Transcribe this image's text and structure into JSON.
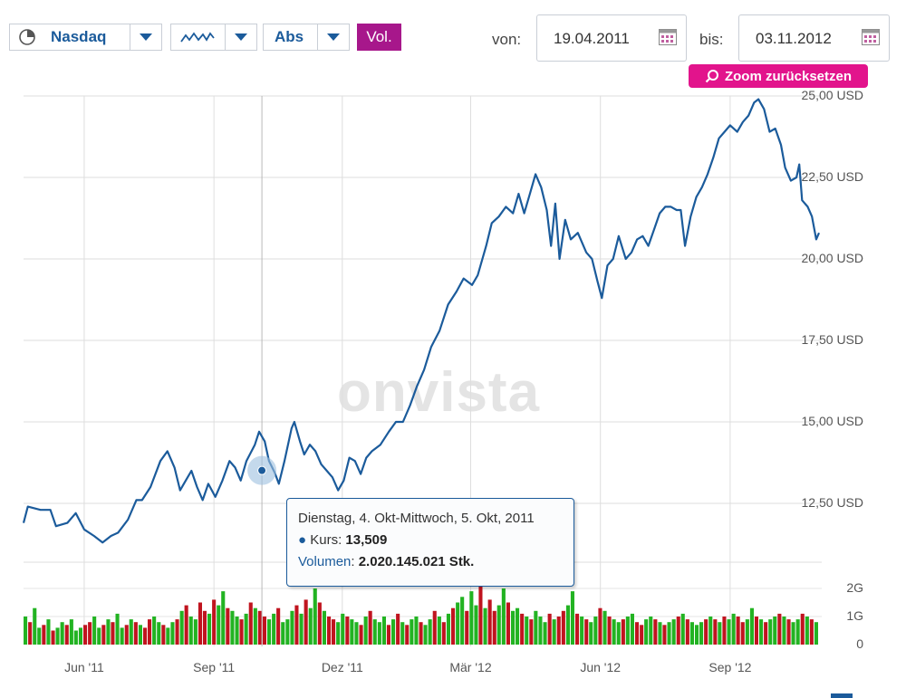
{
  "toolbar": {
    "exchange": "Nasdaq",
    "mode": "Abs",
    "vol_label": "Vol.",
    "from_label": "von:",
    "from_date": "19.04.2011",
    "to_label": "bis:",
    "to_date": "03.11.2012",
    "zoom_reset": "Zoom zurücksetzen"
  },
  "watermark": "onvista",
  "tooltip": {
    "date": "Dienstag, 4. Okt-Mittwoch, 5. Okt, 2011",
    "kurs_label": "Kurs",
    "kurs_value": "13,509",
    "volume_label": "Volumen",
    "volume_value": "2.020.145.021 Stk."
  },
  "colors": {
    "line": "#1b5b9b",
    "volume_up": "#22b322",
    "volume_down": "#c0141f",
    "accent": "#a7178b",
    "zoom": "#e2148c"
  },
  "chart_data": {
    "type": "line",
    "title": "",
    "x_range": [
      "2011-04-19",
      "2012-11-03"
    ],
    "y_range": [
      11,
      25
    ],
    "ylim_shown": [
      12.5,
      25
    ],
    "y_ticks": [
      "25,00 USD",
      "22,50 USD",
      "20,00 USD",
      "17,50 USD",
      "15,00 USD",
      "12,50 USD"
    ],
    "y_tick_values": [
      25,
      22.5,
      20,
      17.5,
      15,
      12.5
    ],
    "x_ticks": [
      "Jun '11",
      "Sep '11",
      "Dez '11",
      "Mär '12",
      "Jun '12",
      "Sep '12"
    ],
    "x_tick_dates": [
      "2011-06-01",
      "2011-09-01",
      "2011-12-01",
      "2012-03-01",
      "2012-06-01",
      "2012-09-01"
    ],
    "series": [
      {
        "points": [
          [
            "2011-04-19",
            11.9
          ],
          [
            "2011-04-22",
            12.4
          ],
          [
            "2011-05-01",
            12.3
          ],
          [
            "2011-05-08",
            12.3
          ],
          [
            "2011-05-12",
            11.8
          ],
          [
            "2011-05-20",
            11.9
          ],
          [
            "2011-05-26",
            12.2
          ],
          [
            "2011-06-01",
            11.7
          ],
          [
            "2011-06-08",
            11.5
          ],
          [
            "2011-06-14",
            11.3
          ],
          [
            "2011-06-20",
            11.5
          ],
          [
            "2011-06-25",
            11.6
          ],
          [
            "2011-07-02",
            12.0
          ],
          [
            "2011-07-08",
            12.6
          ],
          [
            "2011-07-12",
            12.6
          ],
          [
            "2011-07-18",
            13.0
          ],
          [
            "2011-07-25",
            13.8
          ],
          [
            "2011-07-30",
            14.1
          ],
          [
            "2011-08-04",
            13.6
          ],
          [
            "2011-08-08",
            12.9
          ],
          [
            "2011-08-12",
            13.2
          ],
          [
            "2011-08-16",
            13.5
          ],
          [
            "2011-08-20",
            13.0
          ],
          [
            "2011-08-24",
            12.6
          ],
          [
            "2011-08-28",
            13.1
          ],
          [
            "2011-09-02",
            12.7
          ],
          [
            "2011-09-07",
            13.2
          ],
          [
            "2011-09-12",
            13.8
          ],
          [
            "2011-09-16",
            13.6
          ],
          [
            "2011-09-20",
            13.2
          ],
          [
            "2011-09-24",
            13.8
          ],
          [
            "2011-09-30",
            14.3
          ],
          [
            "2011-10-03",
            14.7
          ],
          [
            "2011-10-07",
            14.4
          ],
          [
            "2011-10-10",
            13.8
          ],
          [
            "2011-10-14",
            13.45
          ],
          [
            "2011-10-17",
            13.1
          ],
          [
            "2011-10-21",
            13.8
          ],
          [
            "2011-10-26",
            14.8
          ],
          [
            "2011-10-28",
            15.0
          ],
          [
            "2011-11-01",
            14.4
          ],
          [
            "2011-11-04",
            14.0
          ],
          [
            "2011-11-08",
            14.3
          ],
          [
            "2011-11-12",
            14.1
          ],
          [
            "2011-11-16",
            13.7
          ],
          [
            "2011-11-20",
            13.5
          ],
          [
            "2011-11-24",
            13.3
          ],
          [
            "2011-11-28",
            12.9
          ],
          [
            "2011-12-02",
            13.2
          ],
          [
            "2011-12-06",
            13.9
          ],
          [
            "2011-12-10",
            13.8
          ],
          [
            "2011-12-14",
            13.4
          ],
          [
            "2011-12-18",
            13.9
          ],
          [
            "2011-12-22",
            14.1
          ],
          [
            "2011-12-28",
            14.3
          ],
          [
            "2012-01-03",
            14.7
          ],
          [
            "2012-01-08",
            15.0
          ],
          [
            "2012-01-13",
            15.0
          ],
          [
            "2012-01-18",
            15.5
          ],
          [
            "2012-01-23",
            16.1
          ],
          [
            "2012-01-28",
            16.6
          ],
          [
            "2012-02-02",
            17.3
          ],
          [
            "2012-02-08",
            17.8
          ],
          [
            "2012-02-14",
            18.6
          ],
          [
            "2012-02-20",
            19.0
          ],
          [
            "2012-02-25",
            19.4
          ],
          [
            "2012-03-02",
            19.2
          ],
          [
            "2012-03-06",
            19.5
          ],
          [
            "2012-03-12",
            20.4
          ],
          [
            "2012-03-16",
            21.1
          ],
          [
            "2012-03-21",
            21.3
          ],
          [
            "2012-03-26",
            21.6
          ],
          [
            "2012-03-31",
            21.4
          ],
          [
            "2012-04-04",
            22.0
          ],
          [
            "2012-04-08",
            21.4
          ],
          [
            "2012-04-12",
            22.0
          ],
          [
            "2012-04-16",
            22.6
          ],
          [
            "2012-04-20",
            22.2
          ],
          [
            "2012-04-24",
            21.5
          ],
          [
            "2012-04-27",
            20.4
          ],
          [
            "2012-04-30",
            21.7
          ],
          [
            "2012-05-03",
            20.0
          ],
          [
            "2012-05-07",
            21.2
          ],
          [
            "2012-05-11",
            20.6
          ],
          [
            "2012-05-16",
            20.8
          ],
          [
            "2012-05-22",
            20.2
          ],
          [
            "2012-05-26",
            20.0
          ],
          [
            "2012-05-30",
            19.3
          ],
          [
            "2012-06-02",
            18.8
          ],
          [
            "2012-06-06",
            19.8
          ],
          [
            "2012-06-10",
            20.0
          ],
          [
            "2012-06-14",
            20.7
          ],
          [
            "2012-06-19",
            20.0
          ],
          [
            "2012-06-23",
            20.2
          ],
          [
            "2012-06-27",
            20.6
          ],
          [
            "2012-07-01",
            20.7
          ],
          [
            "2012-07-05",
            20.4
          ],
          [
            "2012-07-09",
            20.9
          ],
          [
            "2012-07-13",
            21.4
          ],
          [
            "2012-07-17",
            21.6
          ],
          [
            "2012-07-21",
            21.6
          ],
          [
            "2012-07-25",
            21.5
          ],
          [
            "2012-07-28",
            21.5
          ],
          [
            "2012-07-31",
            20.4
          ],
          [
            "2012-08-04",
            21.3
          ],
          [
            "2012-08-08",
            21.9
          ],
          [
            "2012-08-12",
            22.2
          ],
          [
            "2012-08-16",
            22.6
          ],
          [
            "2012-08-20",
            23.1
          ],
          [
            "2012-08-24",
            23.7
          ],
          [
            "2012-08-28",
            23.9
          ],
          [
            "2012-09-01",
            24.1
          ],
          [
            "2012-09-06",
            23.9
          ],
          [
            "2012-09-10",
            24.2
          ],
          [
            "2012-09-14",
            24.4
          ],
          [
            "2012-09-18",
            24.8
          ],
          [
            "2012-09-21",
            24.9
          ],
          [
            "2012-09-25",
            24.6
          ],
          [
            "2012-09-29",
            23.9
          ],
          [
            "2012-10-03",
            24.0
          ],
          [
            "2012-10-07",
            23.5
          ],
          [
            "2012-10-10",
            22.8
          ],
          [
            "2012-10-14",
            22.4
          ],
          [
            "2012-10-18",
            22.5
          ],
          [
            "2012-10-20",
            22.9
          ],
          [
            "2012-10-22",
            21.8
          ],
          [
            "2012-10-26",
            21.6
          ],
          [
            "2012-10-29",
            21.3
          ],
          [
            "2012-11-01",
            20.6
          ],
          [
            "2012-11-03",
            20.8
          ]
        ]
      }
    ],
    "highlight": {
      "date": "2011-10-05",
      "value": 13.509
    },
    "volume": {
      "ticks": [
        "2G",
        "1G",
        "0"
      ],
      "tick_values": [
        2,
        1,
        0
      ],
      "unit": "billion shares",
      "up_down_pattern": "GRGGRGRGGRGGGRRGGRGRGGRGRGRRGGRGGRGRGGRRGRGGRGGRGRGRRGGRGGGRGRGGRGRRGGRGGRGRGGGRGRGRGGRGGRGRGRGGRGGRGRRGGRGGRGRGGGRGRRGGRGRGGRGRGGRGGRRGGRGRGGRGRGGGRGRGRGGRRGGRGRGGRGRGGRGRGGRRG",
      "values": [
        1.0,
        0.8,
        1.3,
        0.6,
        0.7,
        0.9,
        0.5,
        0.6,
        0.8,
        0.7,
        0.9,
        0.5,
        0.6,
        0.7,
        0.8,
        1.0,
        0.6,
        0.7,
        0.9,
        0.8,
        1.1,
        0.6,
        0.7,
        0.9,
        0.8,
        0.7,
        0.6,
        0.9,
        1.0,
        0.8,
        0.7,
        0.6,
        0.8,
        0.9,
        1.2,
        1.4,
        1.0,
        0.9,
        1.5,
        1.2,
        1.1,
        1.6,
        1.4,
        1.9,
        1.3,
        1.2,
        1.0,
        0.9,
        1.1,
        1.5,
        1.3,
        1.2,
        1.0,
        0.9,
        1.1,
        1.3,
        0.8,
        0.9,
        1.2,
        1.4,
        1.1,
        1.6,
        1.3,
        2.0,
        1.5,
        1.2,
        1.0,
        0.9,
        0.8,
        1.1,
        1.0,
        0.9,
        0.8,
        0.7,
        1.0,
        1.2,
        0.9,
        0.8,
        1.0,
        0.7,
        0.9,
        1.1,
        0.8,
        0.7,
        0.9,
        1.0,
        0.8,
        0.7,
        0.9,
        1.2,
        1.0,
        0.8,
        1.1,
        1.3,
        1.5,
        1.7,
        1.2,
        1.9,
        1.4,
        2.1,
        1.3,
        1.6,
        1.2,
        1.4,
        2.0,
        1.5,
        1.2,
        1.3,
        1.1,
        1.0,
        0.9,
        1.2,
        1.0,
        0.8,
        1.1,
        0.9,
        1.0,
        1.2,
        1.4,
        1.9,
        1.1,
        1.0,
        0.9,
        0.8,
        1.0,
        1.3,
        1.2,
        1.0,
        0.9,
        0.8,
        0.9,
        1.0,
        1.1,
        0.8,
        0.7,
        0.9,
        1.0,
        0.9,
        0.8,
        0.7,
        0.8,
        0.9,
        1.0,
        1.1,
        0.9,
        0.8,
        0.7,
        0.8,
        0.9,
        1.0,
        0.9,
        0.8,
        1.0,
        0.9,
        1.1,
        1.0,
        0.8,
        0.9,
        1.3,
        1.0,
        0.9,
        0.8,
        0.9,
        1.0,
        1.1,
        1.0,
        0.9,
        0.8,
        0.9,
        1.1,
        1.0,
        0.9,
        0.8
      ]
    }
  }
}
